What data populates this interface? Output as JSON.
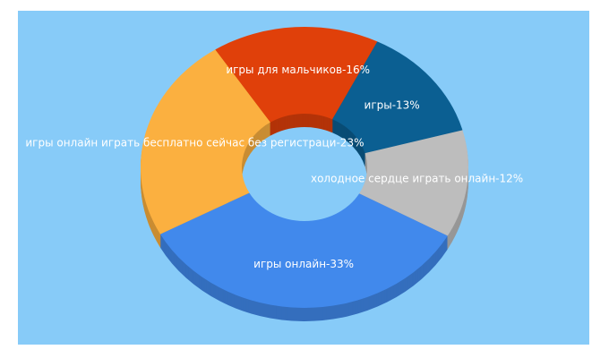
{
  "chart_data": {
    "type": "pie",
    "style": "donut-3d",
    "values": [
      16,
      13,
      12,
      33,
      23
    ],
    "value_labels": [
      "игры для мальчиков-16%",
      "игры-13%",
      "холодное сердце играть онлайн-12%",
      "игры онлайн-33%",
      "игры онлайн играть бесплатно сейчас без регистраци-23%"
    ],
    "colors": [
      "#e0400a",
      "#0b5f92",
      "#bdbdbd",
      "#4189ec",
      "#fbb040"
    ],
    "background": "#87cbf8"
  }
}
